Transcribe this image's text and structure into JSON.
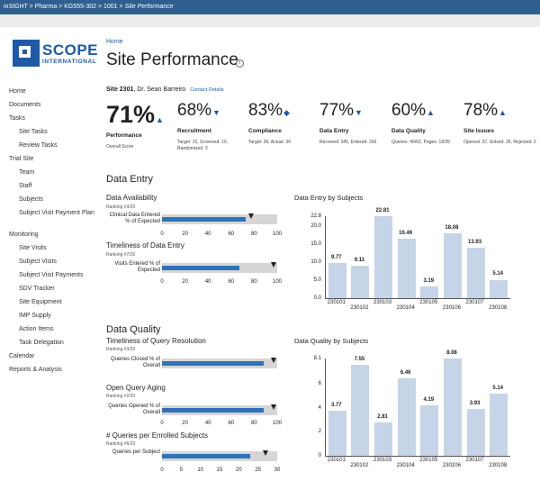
{
  "breadcrumb": [
    "inSIGHT",
    "Pharma",
    "KG555-302",
    "1001",
    "Site Performance"
  ],
  "logo": {
    "name": "SCOPE",
    "sub": "INTERNATIONAL"
  },
  "header": {
    "home": "Home",
    "title": "Site Performance",
    "info_icon": "i"
  },
  "nav": [
    {
      "label": "Home",
      "level": 0
    },
    {
      "label": "Documents",
      "level": 0
    },
    {
      "label": "Tasks",
      "level": 0
    },
    {
      "label": "Site Tasks",
      "level": 1
    },
    {
      "label": "Review Tasks",
      "level": 1
    },
    {
      "label": "Trial Site",
      "level": 0
    },
    {
      "label": "Team",
      "level": 1
    },
    {
      "label": "Staff",
      "level": 1
    },
    {
      "label": "Subjects",
      "level": 1
    },
    {
      "label": "Subject Visit Payment Plan",
      "level": 1
    },
    {
      "label": "Monitoring",
      "level": 0
    },
    {
      "label": "Site Visits",
      "level": 1
    },
    {
      "label": "Subject Visits",
      "level": 1
    },
    {
      "label": "Subject Visit Payments",
      "level": 1
    },
    {
      "label": "SDV Tracker",
      "level": 1
    },
    {
      "label": "Site Equipment",
      "level": 1
    },
    {
      "label": "IMP Supply",
      "level": 1
    },
    {
      "label": "Action Items",
      "level": 1
    },
    {
      "label": "Task Delegation",
      "level": 1
    },
    {
      "label": "Calendar",
      "level": 0
    },
    {
      "label": "Reports & Analysis",
      "level": 0
    }
  ],
  "site": {
    "id": "Site 2301",
    "doctor": ", Dr. Sean Barreiro",
    "contact": "Contact Details"
  },
  "kpis": [
    {
      "value": "71%",
      "arrow": "▲",
      "label": "Performance",
      "detail": "Overall Score"
    },
    {
      "value": "68%",
      "arrow": "▼",
      "label": "Recruitment",
      "detail": "Target: 15, Screened: 10, Randomized: 3"
    },
    {
      "value": "83%",
      "arrow": "◆",
      "label": "Compliance",
      "detail": "Target: 36, Actual: 30"
    },
    {
      "value": "77%",
      "arrow": "▼",
      "label": "Data Entry",
      "detail": "Received: 345, Entered: 266"
    },
    {
      "value": "60%",
      "arrow": "▲",
      "label": "Data Quality",
      "detail": "Queries: 40/62, Pages: 18/35"
    },
    {
      "value": "78%",
      "arrow": "▲",
      "label": "Site Issues",
      "detail": "Opened: 37, Solved: 26, Rejected: 2"
    }
  ],
  "data_entry": {
    "title": "Data Entry",
    "metrics": [
      {
        "title": "Data Availability",
        "rank": "Ranking #3/20",
        "bar_label": "Clinical Data Entered % of Expected",
        "value": 73,
        "target": 77,
        "axis_max": 100
      },
      {
        "title": "Timeliness of Data Entry",
        "rank": "Ranking #7/20",
        "bar_label": "Visits Entered % of Expected",
        "value": 67,
        "target": 97,
        "axis_max": 100
      }
    ],
    "axis_ticks": [
      "0",
      "20",
      "40",
      "60",
      "80",
      "100"
    ],
    "chart_title": "Data Entry by Subjects"
  },
  "data_quality": {
    "title": "Data Quality",
    "metrics": [
      {
        "title": "Timeliness of Query Resolution",
        "rank": "Ranking #3/20",
        "bar_label": "Queries Closed % of Overall",
        "value": 88,
        "target": 97,
        "axis_max": 100
      },
      {
        "title": "Open Query Aging",
        "rank": "Ranking #2/20",
        "bar_label": "Queries Opened % of Overall",
        "value": 88,
        "target": 97,
        "axis_max": 100
      }
    ],
    "axis_ticks": [
      "0",
      "20",
      "40",
      "60",
      "80",
      "100"
    ],
    "extra": {
      "title": "# Queries per Enrolled Subjects",
      "rank": "Ranking #6/20",
      "bar_label": "Queries per Subject",
      "value": 23,
      "target": 27,
      "axis_max": 30
    },
    "extra_ticks": [
      "0",
      "5",
      "10",
      "15",
      "20",
      "25",
      "30"
    ],
    "chart_title": "Data Quality by Subjects"
  },
  "chart_data": [
    {
      "type": "bar",
      "title": "Data Entry by Subjects",
      "categories": [
        "230101",
        "230102",
        "230103",
        "230104",
        "230105",
        "230106",
        "230107",
        "230108"
      ],
      "values": [
        9.77,
        9.11,
        22.81,
        16.46,
        3.19,
        18.08,
        13.93,
        5.14
      ],
      "ylim": [
        0,
        22.8
      ],
      "yticks": [
        "22.8",
        "20.0",
        "15.0",
        "10.0",
        "5.0",
        "0.0"
      ],
      "grid": false
    },
    {
      "type": "bar",
      "title": "Data Quality by Subjects",
      "categories": [
        "230101",
        "230102",
        "230103",
        "230104",
        "230105",
        "230106",
        "230107",
        "230108"
      ],
      "values": [
        3.77,
        7.55,
        2.81,
        6.46,
        4.19,
        8.08,
        3.93,
        5.14
      ],
      "ylim": [
        0,
        8.1
      ],
      "yticks": [
        "8.1",
        "6",
        "4",
        "2",
        "0"
      ],
      "grid": false
    }
  ]
}
